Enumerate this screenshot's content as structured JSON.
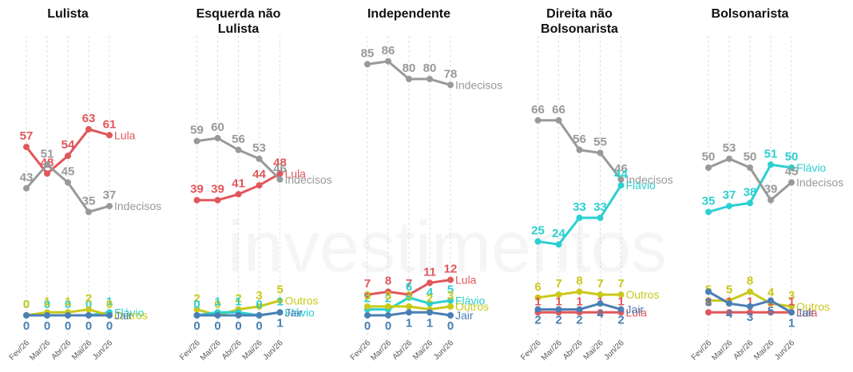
{
  "watermark": "investimentos",
  "chart_data": [
    {
      "type": "line",
      "title": "Lulista",
      "categories": [
        "Fev/26",
        "Mar/26",
        "Abr/26",
        "Mai/26",
        "Jun/26"
      ],
      "ylim": [
        0,
        90
      ],
      "series": [
        {
          "name": "Lula",
          "color": "#e0575b",
          "values": [
            57,
            48,
            54,
            63,
            61
          ]
        },
        {
          "name": "Indecisos",
          "color": "#999999",
          "values": [
            43,
            51,
            45,
            35,
            37
          ]
        },
        {
          "name": "Flávio",
          "color": "#2ccfd0",
          "values": [
            0,
            0,
            0,
            0,
            1
          ]
        },
        {
          "name": "Outros",
          "color": "#c9c91a",
          "values": [
            0,
            1,
            1,
            2,
            0
          ]
        },
        {
          "name": "Jair",
          "color": "#4a7fb5",
          "values": [
            0,
            0,
            0,
            0,
            0
          ]
        }
      ]
    },
    {
      "type": "line",
      "title": "Esquerda não Lulista",
      "categories": [
        "Fev/26",
        "Mar/26",
        "Abr/26",
        "Mai/26",
        "Jun/26"
      ],
      "ylim": [
        0,
        90
      ],
      "series": [
        {
          "name": "Lula",
          "color": "#e0575b",
          "values": [
            39,
            39,
            41,
            44,
            48
          ]
        },
        {
          "name": "Indecisos",
          "color": "#999999",
          "values": [
            59,
            60,
            56,
            53,
            46
          ]
        },
        {
          "name": "Outros",
          "color": "#c9c91a",
          "values": [
            2,
            0,
            2,
            3,
            5
          ]
        },
        {
          "name": "Flávio",
          "color": "#2ccfd0",
          "values": [
            0,
            1,
            1,
            0,
            1
          ]
        },
        {
          "name": "Jair",
          "color": "#4a7fb5",
          "values": [
            0,
            0,
            0,
            0,
            1
          ]
        }
      ]
    },
    {
      "type": "line",
      "title": "Independente",
      "categories": [
        "Fev/26",
        "Mar/26",
        "Abr/26",
        "Mai/26",
        "Jun/26"
      ],
      "ylim": [
        0,
        90
      ],
      "series": [
        {
          "name": "Indecisos",
          "color": "#999999",
          "values": [
            85,
            86,
            80,
            80,
            78
          ]
        },
        {
          "name": "Lula",
          "color": "#e0575b",
          "values": [
            7,
            8,
            7,
            11,
            12
          ]
        },
        {
          "name": "Flávio",
          "color": "#2ccfd0",
          "values": [
            2,
            2,
            6,
            4,
            5
          ]
        },
        {
          "name": "Outros",
          "color": "#c9c91a",
          "values": [
            3,
            3,
            3,
            2,
            3
          ]
        },
        {
          "name": "Jair",
          "color": "#4a7fb5",
          "values": [
            0,
            0,
            1,
            1,
            0
          ]
        }
      ]
    },
    {
      "type": "line",
      "title": "Direita não Bolsonarista",
      "categories": [
        "Fev/26",
        "Mar/26",
        "Abr/26",
        "Mai/26",
        "Jun/26"
      ],
      "ylim": [
        0,
        90
      ],
      "series": [
        {
          "name": "Indecisos",
          "color": "#999999",
          "values": [
            66,
            66,
            56,
            55,
            46
          ]
        },
        {
          "name": "Flávio",
          "color": "#2ccfd0",
          "values": [
            25,
            24,
            33,
            33,
            44
          ]
        },
        {
          "name": "Outros",
          "color": "#c9c91a",
          "values": [
            6,
            7,
            8,
            7,
            7
          ]
        },
        {
          "name": "Lula",
          "color": "#e0575b",
          "values": [
            1,
            1,
            1,
            1,
            1
          ]
        },
        {
          "name": "Jair",
          "color": "#4a7fb5",
          "values": [
            2,
            2,
            2,
            4,
            2
          ]
        }
      ]
    },
    {
      "type": "line",
      "title": "Bolsonarista",
      "categories": [
        "Fev/26",
        "Mar/26",
        "Abr/26",
        "Mai/26",
        "Jun/26"
      ],
      "ylim": [
        0,
        90
      ],
      "series": [
        {
          "name": "Flávio",
          "color": "#2ccfd0",
          "values": [
            35,
            37,
            38,
            51,
            50
          ]
        },
        {
          "name": "Indecisos",
          "color": "#999999",
          "values": [
            50,
            53,
            50,
            39,
            45
          ]
        },
        {
          "name": "Outros",
          "color": "#c9c91a",
          "values": [
            5,
            5,
            8,
            4,
            3
          ]
        },
        {
          "name": "Lula",
          "color": "#e0575b",
          "values": [
            1,
            1,
            1,
            1,
            1
          ]
        },
        {
          "name": "Jair",
          "color": "#4a7fb5",
          "values": [
            8,
            4,
            3,
            5,
            1
          ]
        }
      ]
    }
  ]
}
